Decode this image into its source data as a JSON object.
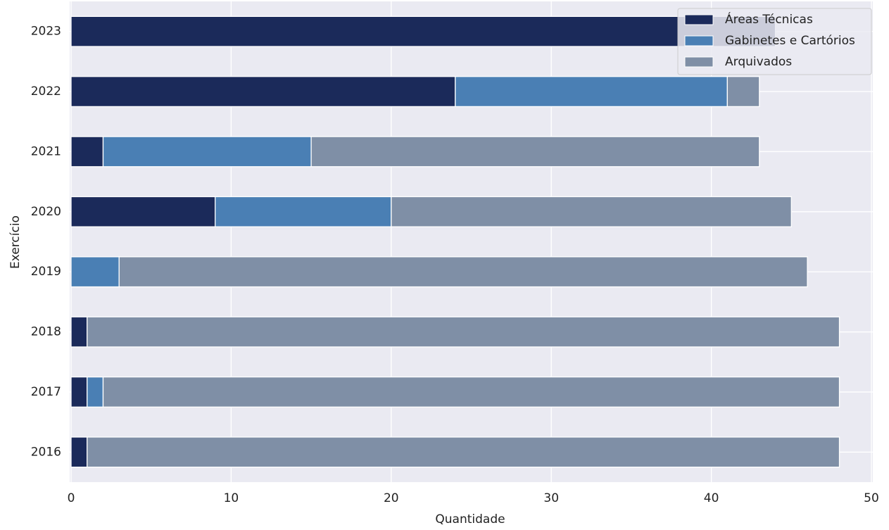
{
  "chart_data": {
    "type": "stacked-barh",
    "x_label": "Quantidade",
    "y_label": "Exercício",
    "categories": [
      "2016",
      "2017",
      "2018",
      "2019",
      "2020",
      "2021",
      "2022",
      "2023"
    ],
    "series": [
      {
        "name": "Áreas Técnicas",
        "color": "#1b2a5a",
        "values": [
          1,
          1,
          1,
          0,
          9,
          2,
          24,
          44
        ]
      },
      {
        "name": "Gabinetes e Cartórios",
        "color": "#4a7fb4",
        "values": [
          0,
          1,
          0,
          3,
          11,
          13,
          17,
          0
        ]
      },
      {
        "name": "Arquivados",
        "color": "#7f8fa6",
        "values": [
          47,
          46,
          47,
          43,
          25,
          28,
          2,
          0
        ]
      }
    ],
    "xlim": [
      0,
      50
    ],
    "xticks": [
      0,
      10,
      20,
      30,
      40,
      50
    ],
    "grid": true,
    "legend": "upper right"
  }
}
